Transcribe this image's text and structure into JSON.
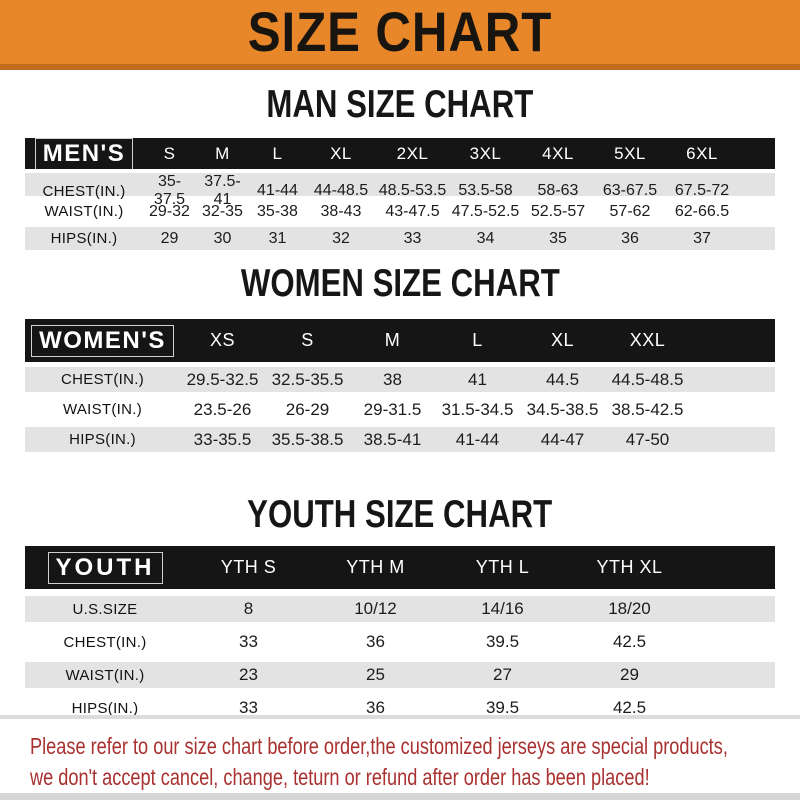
{
  "banner": {
    "title": "SIZE CHART",
    "bg_color": "#e8872a",
    "edge_color": "#bf6c1d"
  },
  "sections": [
    {
      "title": "MAN SIZE CHART",
      "header_label": "MEN'S",
      "columns": [
        "S",
        "M",
        "L",
        "XL",
        "2XL",
        "3XL",
        "4XL",
        "5XL",
        "6XL"
      ],
      "rows": [
        {
          "label": "CHEST(IN.)",
          "values": [
            "35-37.5",
            "37.5-41",
            "41-44",
            "44-48.5",
            "48.5-53.5",
            "53.5-58",
            "58-63",
            "63-67.5",
            "67.5-72"
          ]
        },
        {
          "label": "WAIST(IN.)",
          "values": [
            "29-32",
            "32-35",
            "35-38",
            "38-43",
            "43-47.5",
            "47.5-52.5",
            "52.5-57",
            "57-62",
            "62-66.5"
          ]
        },
        {
          "label": "HIPS(IN.)",
          "values": [
            "29",
            "30",
            "31",
            "32",
            "33",
            "34",
            "35",
            "36",
            "37"
          ]
        }
      ]
    },
    {
      "title": "WOMEN SIZE CHART",
      "header_label": "WOMEN'S",
      "columns": [
        "XS",
        "S",
        "M",
        "L",
        "XL",
        "XXL"
      ],
      "rows": [
        {
          "label": "CHEST(IN.)",
          "values": [
            "29.5-32.5",
            "32.5-35.5",
            "38",
            "41",
            "44.5",
            "44.5-48.5"
          ]
        },
        {
          "label": "WAIST(IN.)",
          "values": [
            "23.5-26",
            "26-29",
            "29-31.5",
            "31.5-34.5",
            "34.5-38.5",
            "38.5-42.5"
          ]
        },
        {
          "label": "HIPS(IN.)",
          "values": [
            "33-35.5",
            "35.5-38.5",
            "38.5-41",
            "41-44",
            "44-47",
            "47-50"
          ]
        }
      ]
    },
    {
      "title": "YOUTH SIZE CHART",
      "header_label": "YOUTH",
      "columns": [
        "YTH S",
        "YTH M",
        "YTH L",
        "YTH XL"
      ],
      "rows": [
        {
          "label": "U.S.SIZE",
          "values": [
            "8",
            "10/12",
            "14/16",
            "18/20"
          ]
        },
        {
          "label": "CHEST(IN.)",
          "values": [
            "33",
            "36",
            "39.5",
            "42.5"
          ]
        },
        {
          "label": "WAIST(IN.)",
          "values": [
            "23",
            "25",
            "27",
            "29"
          ]
        },
        {
          "label": "HIPS(IN.)",
          "values": [
            "33",
            "36",
            "39.5",
            "42.5"
          ]
        }
      ]
    }
  ],
  "disclaimer": {
    "line1": "Please refer to our size chart before order,the customized jerseys are special products,",
    "line2": "we don't accept cancel, change, teturn or refund after order has been placed!",
    "color": "#a93130"
  },
  "colors": {
    "header_bar": "#151515",
    "stripe_row": "#e3e3e3"
  }
}
